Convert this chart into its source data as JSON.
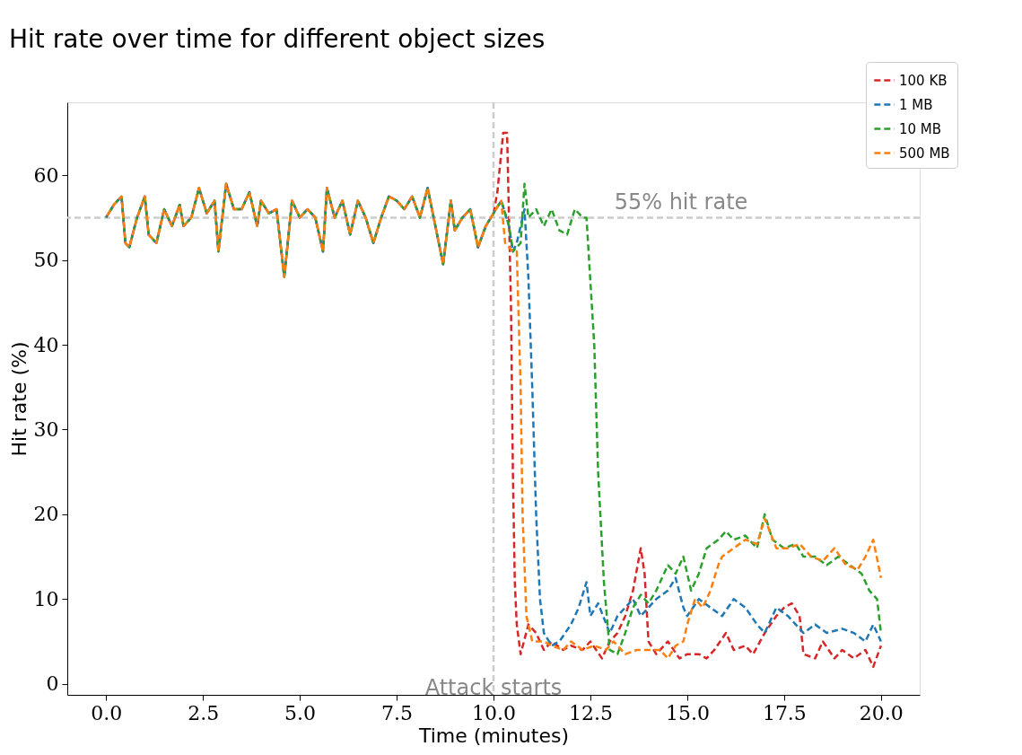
{
  "chart_data": {
    "type": "line",
    "title": "Hit rate over time for different object sizes",
    "xlabel": "Time (minutes)",
    "ylabel": "Hit rate (%)",
    "xlim": [
      -1,
      21
    ],
    "ylim": [
      -1.3,
      68.6
    ],
    "xticks": [
      {
        "value": 0,
        "label": "0.0"
      },
      {
        "value": 2.5,
        "label": "2.5"
      },
      {
        "value": 5,
        "label": "5.0"
      },
      {
        "value": 7.5,
        "label": "7.5"
      },
      {
        "value": 10,
        "label": "10.0"
      },
      {
        "value": 12.5,
        "label": "12.5"
      },
      {
        "value": 15,
        "label": "15.0"
      },
      {
        "value": 17.5,
        "label": "17.5"
      },
      {
        "value": 20,
        "label": "20.0"
      }
    ],
    "yticks": [
      0,
      10,
      20,
      30,
      40,
      50,
      60
    ],
    "grid": false,
    "legend": "top right",
    "line_style": "dashed",
    "marker": "none",
    "ref_lines": [
      {
        "axis": "y",
        "value": 55,
        "label": "55% hit rate",
        "color": "#cccccc",
        "line_style": "dashed"
      },
      {
        "axis": "x",
        "value": 10,
        "label": "Attack starts",
        "color": "#cccccc",
        "line_style": "dashed"
      }
    ],
    "series": [
      {
        "name": "100 KB",
        "color": "#d62728",
        "x": [
          0.0,
          0.2,
          0.4,
          0.5,
          0.6,
          0.8,
          1.0,
          1.1,
          1.3,
          1.5,
          1.7,
          1.9,
          2.0,
          2.2,
          2.4,
          2.6,
          2.8,
          2.9,
          3.0,
          3.1,
          3.3,
          3.5,
          3.7,
          3.9,
          4.0,
          4.2,
          4.4,
          4.6,
          4.8,
          5.0,
          5.2,
          5.4,
          5.6,
          5.7,
          5.9,
          6.1,
          6.3,
          6.5,
          6.7,
          6.9,
          7.1,
          7.3,
          7.5,
          7.7,
          7.9,
          8.1,
          8.3,
          8.5,
          8.7,
          8.9,
          9.0,
          9.2,
          9.4,
          9.6,
          9.8,
          10.0,
          10.1,
          10.25,
          10.35,
          10.45,
          10.5,
          10.55,
          10.6,
          10.7,
          10.9,
          11.1,
          11.3,
          11.5,
          11.8,
          12.0,
          12.3,
          12.5,
          12.8,
          13.0,
          13.2,
          13.4,
          13.6,
          13.8,
          13.9,
          14.0,
          14.2,
          14.5,
          14.8,
          15.0,
          15.3,
          15.5,
          15.7,
          16.0,
          16.2,
          16.5,
          16.7,
          17.0,
          17.3,
          17.5,
          17.7,
          17.9,
          18.0,
          18.3,
          18.5,
          18.8,
          19.0,
          19.3,
          19.6,
          19.8,
          20.0
        ],
        "values": [
          55,
          56.5,
          57.5,
          52,
          51.5,
          55,
          57.5,
          53,
          52,
          56,
          54,
          56.5,
          54,
          55,
          58.5,
          55.5,
          57,
          51,
          55,
          59,
          56,
          56,
          58,
          54,
          57,
          55.5,
          56,
          48,
          57,
          55,
          56,
          55,
          51,
          58.5,
          55,
          57,
          53,
          57,
          55,
          52,
          55,
          57.5,
          57,
          56,
          57.5,
          55,
          58.5,
          54,
          49.5,
          57,
          53.5,
          55,
          56,
          51.5,
          54,
          55.5,
          58,
          65,
          65,
          45,
          25,
          12,
          7,
          3.5,
          7,
          6,
          4,
          5,
          4,
          4.5,
          4,
          5,
          3,
          5,
          6,
          8,
          11,
          16,
          13,
          5,
          3.5,
          5,
          3,
          3.5,
          3.5,
          3,
          4,
          6,
          4,
          4.5,
          3.5,
          6,
          8,
          9,
          9.5,
          8,
          3.5,
          3,
          5,
          3,
          4,
          3,
          4,
          2,
          4.5
        ]
      },
      {
        "name": "1 MB",
        "color": "#1f77b4",
        "x": [
          0.0,
          0.2,
          0.4,
          0.5,
          0.6,
          0.8,
          1.0,
          1.1,
          1.3,
          1.5,
          1.7,
          1.9,
          2.0,
          2.2,
          2.4,
          2.6,
          2.8,
          2.9,
          3.0,
          3.1,
          3.3,
          3.5,
          3.7,
          3.9,
          4.0,
          4.2,
          4.4,
          4.6,
          4.8,
          5.0,
          5.2,
          5.4,
          5.6,
          5.7,
          5.9,
          6.1,
          6.3,
          6.5,
          6.7,
          6.9,
          7.1,
          7.3,
          7.5,
          7.7,
          7.9,
          8.1,
          8.3,
          8.5,
          8.7,
          8.9,
          9.0,
          9.2,
          9.4,
          9.6,
          9.8,
          10.0,
          10.2,
          10.4,
          10.5,
          10.6,
          10.8,
          10.9,
          11.0,
          11.1,
          11.2,
          11.3,
          11.5,
          11.7,
          12.0,
          12.2,
          12.4,
          12.5,
          12.7,
          13.0,
          13.2,
          13.4,
          13.6,
          13.8,
          14.0,
          14.2,
          14.5,
          14.7,
          14.9,
          15.0,
          15.3,
          15.6,
          15.9,
          16.2,
          16.5,
          16.8,
          17.0,
          17.3,
          17.6,
          18.0,
          18.3,
          18.6,
          19.0,
          19.3,
          19.6,
          19.8,
          20.0
        ],
        "values": [
          55,
          56.5,
          57.5,
          52,
          51.5,
          55,
          57.5,
          53,
          52,
          56,
          54,
          56.5,
          54,
          55,
          58.5,
          55.5,
          57,
          51,
          55,
          59,
          56,
          56,
          58,
          54,
          57,
          55.5,
          56,
          48,
          57,
          55,
          56,
          55,
          51,
          58.5,
          55,
          57,
          53,
          57,
          55,
          52,
          55,
          57.5,
          57,
          56,
          57.5,
          55,
          58.5,
          54,
          49.5,
          57,
          53.5,
          55,
          56,
          51.5,
          54,
          55.5,
          57,
          54,
          51,
          52,
          56,
          48,
          35,
          20,
          10,
          6,
          4.5,
          5,
          7,
          9,
          12,
          8,
          9.5,
          6,
          8,
          9,
          10,
          8,
          9,
          10,
          11,
          12.5,
          9,
          8,
          10,
          9,
          8,
          10,
          9,
          7,
          6,
          9,
          8,
          6,
          7,
          6,
          6.5,
          6,
          5,
          7,
          5
        ]
      },
      {
        "name": "10 MB",
        "color": "#2ca02c",
        "x": [
          0.0,
          0.2,
          0.4,
          0.5,
          0.6,
          0.8,
          1.0,
          1.1,
          1.3,
          1.5,
          1.7,
          1.9,
          2.0,
          2.2,
          2.4,
          2.6,
          2.8,
          2.9,
          3.0,
          3.1,
          3.3,
          3.5,
          3.7,
          3.9,
          4.0,
          4.2,
          4.4,
          4.6,
          4.8,
          5.0,
          5.2,
          5.4,
          5.6,
          5.7,
          5.9,
          6.1,
          6.3,
          6.5,
          6.7,
          6.9,
          7.1,
          7.3,
          7.5,
          7.7,
          7.9,
          8.1,
          8.3,
          8.5,
          8.7,
          8.9,
          9.0,
          9.2,
          9.4,
          9.6,
          9.8,
          10.0,
          10.2,
          10.4,
          10.5,
          10.7,
          10.8,
          10.9,
          11.1,
          11.3,
          11.5,
          11.7,
          11.9,
          12.1,
          12.3,
          12.4,
          12.6,
          12.7,
          12.85,
          13.0,
          13.2,
          13.4,
          13.6,
          13.8,
          14.0,
          14.2,
          14.5,
          14.7,
          14.9,
          15.1,
          15.3,
          15.5,
          15.8,
          16.0,
          16.2,
          16.5,
          16.8,
          17.0,
          17.2,
          17.5,
          17.8,
          18.0,
          18.3,
          18.6,
          18.9,
          19.2,
          19.5,
          19.7,
          19.9,
          20.0
        ],
        "values": [
          55,
          56.5,
          57.5,
          52,
          51.5,
          55,
          57.5,
          53,
          52,
          56,
          54,
          56.5,
          54,
          55,
          58.5,
          55.5,
          57,
          51,
          55,
          59,
          56,
          56,
          58,
          54,
          57,
          55.5,
          56,
          48,
          57,
          55,
          56,
          55,
          51,
          58.5,
          55,
          57,
          53,
          57,
          55,
          52,
          55,
          57.5,
          57,
          56,
          57.5,
          55,
          58.5,
          54,
          49.5,
          57,
          53.5,
          55,
          56,
          51.5,
          54,
          55.5,
          57,
          54,
          51,
          52,
          59,
          55,
          56,
          54,
          56,
          53.5,
          53,
          56,
          55,
          55,
          40,
          25,
          12,
          4,
          3.5,
          6,
          9,
          10.5,
          9.5,
          11,
          14,
          13,
          15,
          11,
          13,
          16,
          17,
          18,
          17,
          17.5,
          16,
          20,
          17,
          16,
          16.5,
          15,
          15,
          14,
          15,
          14,
          13,
          11,
          10,
          6
        ]
      },
      {
        "name": "500 MB",
        "color": "#ff7f0e",
        "x": [
          0.0,
          0.2,
          0.4,
          0.5,
          0.6,
          0.8,
          1.0,
          1.1,
          1.3,
          1.5,
          1.7,
          1.9,
          2.0,
          2.2,
          2.4,
          2.6,
          2.8,
          2.9,
          3.0,
          3.1,
          3.3,
          3.5,
          3.7,
          3.9,
          4.0,
          4.2,
          4.4,
          4.6,
          4.8,
          5.0,
          5.2,
          5.4,
          5.6,
          5.7,
          5.9,
          6.1,
          6.3,
          6.5,
          6.7,
          6.9,
          7.1,
          7.3,
          7.5,
          7.7,
          7.9,
          8.1,
          8.3,
          8.5,
          8.7,
          8.9,
          9.0,
          9.2,
          9.4,
          9.6,
          9.8,
          10.0,
          10.2,
          10.3,
          10.5,
          10.6,
          10.7,
          10.75,
          10.85,
          11.0,
          11.3,
          11.5,
          11.8,
          12.0,
          12.3,
          12.6,
          12.9,
          13.1,
          13.4,
          13.7,
          14.0,
          14.3,
          14.5,
          14.7,
          14.9,
          15.0,
          15.2,
          15.4,
          15.6,
          15.8,
          15.9,
          16.2,
          16.5,
          16.8,
          17.0,
          17.3,
          17.6,
          17.9,
          18.2,
          18.5,
          18.8,
          19.1,
          19.4,
          19.6,
          19.8,
          20.0
        ],
        "values": [
          55,
          56.5,
          57.5,
          52,
          51.5,
          55,
          57.5,
          53,
          52,
          56,
          54,
          56.5,
          54,
          55,
          58.5,
          55.5,
          57,
          51,
          55,
          59,
          56,
          56,
          58,
          54,
          57,
          55.5,
          56,
          48,
          57,
          55,
          56,
          55,
          51,
          58.5,
          55,
          57,
          53,
          57,
          55,
          52,
          55,
          57.5,
          57,
          56,
          57.5,
          55,
          58.5,
          54,
          49.5,
          57,
          53.5,
          55,
          56,
          51.5,
          54,
          55.5,
          57,
          52,
          51,
          51,
          35,
          20,
          8,
          5,
          5,
          4.5,
          4,
          5,
          4,
          4.5,
          4,
          5,
          3.5,
          4,
          4,
          4,
          3,
          4.5,
          5,
          7,
          10,
          9,
          11,
          14,
          15,
          16,
          17,
          16.5,
          19.5,
          16,
          16,
          16.5,
          15,
          14.5,
          16,
          14,
          13.5,
          15,
          17,
          12.5
        ]
      }
    ]
  }
}
